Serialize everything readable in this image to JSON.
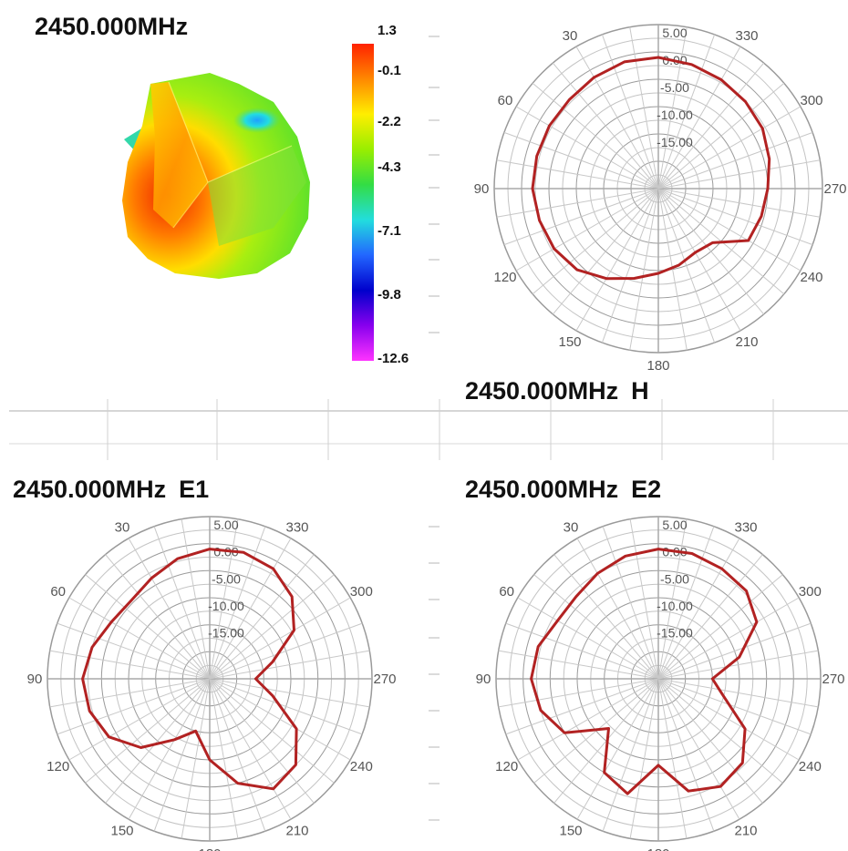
{
  "pattern3d": {
    "title": "2450.000MHz",
    "colorbar": {
      "ticks": [
        "1.3",
        "-0.1",
        "-2.2",
        "-4.3",
        "-7.1",
        "-9.8",
        "-12.6"
      ],
      "colors": [
        "#ff2200",
        "#ff8800",
        "#ffee00",
        "#99ee00",
        "#33dd44",
        "#22dddd",
        "#2266ff",
        "#0000cc",
        "#8800ee",
        "#ff33ff"
      ]
    }
  },
  "chart_data": [
    {
      "type": "polar",
      "title": "2450.000MHz",
      "suffix": "H",
      "angle_labels": [
        "30",
        "330",
        "60",
        "300",
        "90",
        "270",
        "120",
        "240",
        "150",
        "210",
        "180"
      ],
      "radial_labels": [
        "5.00",
        "0.00",
        "-5.00",
        "-10.00",
        "-15.00"
      ],
      "rlim": [
        -25,
        5
      ],
      "series": [
        {
          "color": "#b22222",
          "theta": [
            0,
            15,
            30,
            45,
            60,
            75,
            90,
            105,
            120,
            135,
            150,
            165,
            180,
            195,
            210,
            225,
            240,
            255,
            270,
            285,
            300,
            315,
            330,
            345
          ],
          "r": [
            -1.0,
            -1.0,
            -1.5,
            -2.0,
            -2.0,
            -2.0,
            -2.0,
            -2.5,
            -3.0,
            -4.0,
            -6.0,
            -8.0,
            -9.5,
            -10.5,
            -11.5,
            -11.0,
            -6.0,
            -5.5,
            -5.0,
            -4.0,
            -3.0,
            -2.5,
            -2.0,
            -1.5
          ]
        }
      ]
    },
    {
      "type": "polar",
      "title": "2450.000MHz",
      "suffix": "E1",
      "angle_labels": [
        "30",
        "330",
        "60",
        "300",
        "90",
        "270",
        "120",
        "240",
        "150",
        "210",
        "180"
      ],
      "radial_labels": [
        "5.00",
        "0.00",
        "-5.00",
        "-10.00",
        "-15.00"
      ],
      "rlim": [
        -25,
        5
      ],
      "series": [
        {
          "color": "#b22222",
          "theta": [
            0,
            15,
            30,
            45,
            60,
            75,
            90,
            105,
            120,
            135,
            150,
            165,
            180,
            195,
            210,
            225,
            240,
            255,
            270,
            285,
            300,
            315,
            330,
            345
          ],
          "r": [
            -1.0,
            -2.0,
            -3.5,
            -4.5,
            -4.0,
            -2.5,
            -1.5,
            -2.0,
            -3.5,
            -7.0,
            -12.0,
            -15.0,
            -10.0,
            -5.0,
            -1.5,
            -2.5,
            -6.5,
            -13.0,
            -16.5,
            -13.0,
            -7.0,
            -3.5,
            -1.5,
            -0.8
          ]
        }
      ]
    },
    {
      "type": "polar",
      "title": "2450.000MHz",
      "suffix": "E2",
      "angle_labels": [
        "30",
        "330",
        "60",
        "300",
        "90",
        "270",
        "120",
        "240",
        "150",
        "210",
        "180"
      ],
      "radial_labels": [
        "5.00",
        "0.00",
        "-5.00",
        "-10.00",
        "-15.00"
      ],
      "rlim": [
        -25,
        5
      ],
      "series": [
        {
          "color": "#b22222",
          "theta": [
            0,
            15,
            30,
            45,
            60,
            75,
            90,
            105,
            120,
            135,
            150,
            165,
            180,
            195,
            210,
            225,
            240,
            255,
            270,
            285,
            300,
            315,
            330,
            345
          ],
          "r": [
            -1.0,
            -1.5,
            -2.5,
            -3.5,
            -3.5,
            -2.0,
            -1.5,
            -2.5,
            -5.0,
            -12.0,
            -5.0,
            -3.0,
            -9.0,
            -3.5,
            -2.0,
            -3.0,
            -6.5,
            -12.5,
            -15.0,
            -9.5,
            -4.0,
            -2.0,
            -1.5,
            -1.0
          ]
        }
      ]
    }
  ]
}
